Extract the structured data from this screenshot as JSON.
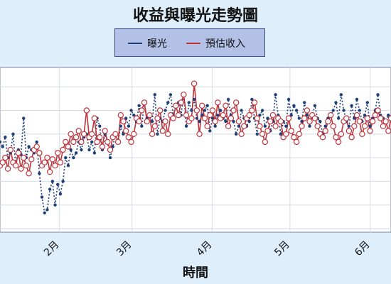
{
  "chart_data": {
    "type": "line",
    "title": "收益與曝光走勢圖",
    "xlabel": "時間",
    "ylabel": "",
    "x_tick_labels": [
      "2月",
      "3月",
      "4月",
      "5月",
      "6月"
    ],
    "x_ticks": [
      "2月1日",
      "3月1日",
      "4月1日",
      "5月1日",
      "6月1日"
    ],
    "x_start": "1月20日",
    "x_end": "6月20日",
    "y_tick_labels": [],
    "ylim": [
      0,
      100
    ],
    "grid": true,
    "legend_position": "top-center",
    "series": [
      {
        "name": "曝光",
        "color": "#1f3f7a",
        "style": "dotted-markers",
        "values": [
          55,
          52,
          58,
          45,
          48,
          60,
          40,
          50,
          47,
          70,
          45,
          52,
          50,
          48,
          55,
          35,
          20,
          10,
          12,
          25,
          30,
          15,
          28,
          22,
          30,
          45,
          40,
          50,
          45,
          48,
          55,
          50,
          58,
          60,
          50,
          55,
          48,
          70,
          65,
          50,
          60,
          55,
          45,
          52,
          60,
          55,
          65,
          60,
          70,
          65,
          75,
          72,
          68,
          78,
          65,
          80,
          70,
          72,
          68,
          85,
          60,
          70,
          68,
          75,
          80,
          85,
          72,
          78,
          80,
          72,
          85,
          65,
          80,
          75,
          82,
          70,
          68,
          72,
          75,
          78,
          62,
          70,
          65,
          72,
          75,
          70,
          68,
          82,
          72,
          68,
          60,
          65,
          75,
          70,
          65,
          68,
          82,
          70,
          60,
          72,
          75,
          65,
          70,
          62,
          68,
          85,
          72,
          60,
          68,
          65,
          82,
          72,
          78,
          75,
          70,
          68,
          80,
          72,
          65,
          72,
          78,
          70,
          68,
          60,
          65,
          70,
          72,
          75,
          80,
          70,
          85,
          75,
          68,
          65,
          78,
          70,
          82,
          75,
          68,
          72,
          80,
          65,
          70,
          75,
          85,
          72,
          70,
          68,
          72
        ]
      },
      {
        "name": "預估收入",
        "color": "#c0343c",
        "style": "solid-open-markers",
        "values": [
          40,
          42,
          45,
          38,
          50,
          42,
          40,
          48,
          38,
          45,
          40,
          35,
          44,
          50,
          52,
          48,
          40,
          42,
          45,
          36,
          44,
          40,
          48,
          42,
          50,
          55,
          52,
          60,
          55,
          58,
          62,
          55,
          60,
          75,
          58,
          60,
          70,
          55,
          58,
          52,
          62,
          55,
          50,
          58,
          60,
          55,
          72,
          68,
          62,
          58,
          55,
          60,
          70,
          68,
          75,
          80,
          68,
          72,
          60,
          65,
          70,
          75,
          62,
          68,
          60,
          72,
          70,
          78,
          72,
          80,
          85,
          72,
          68,
          70,
          92,
          75,
          60,
          78,
          70,
          65,
          72,
          75,
          68,
          80,
          70,
          72,
          78,
          65,
          70,
          75,
          80,
          68,
          60,
          65,
          70,
          72,
          75,
          80,
          70,
          65,
          60,
          55,
          62,
          68,
          72,
          65,
          70,
          68,
          58,
          60,
          70,
          62,
          58,
          55,
          60,
          65,
          70,
          75,
          68,
          72,
          70,
          65,
          60,
          58,
          62,
          68,
          72,
          65,
          58,
          55,
          60,
          68,
          70,
          62,
          58,
          65,
          72,
          68,
          60,
          65,
          70,
          62,
          68,
          72,
          75,
          70,
          65,
          68,
          62,
          70
        ]
      }
    ]
  }
}
